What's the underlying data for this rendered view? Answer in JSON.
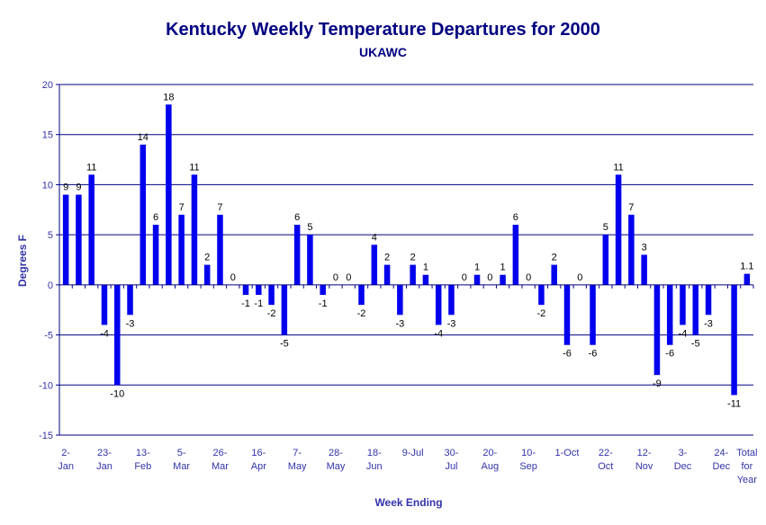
{
  "chart_data": {
    "type": "bar",
    "title": "Kentucky Weekly Temperature Departures for 2000",
    "subtitle": "UKAWC",
    "xlabel": "Week Ending",
    "ylabel": "Degrees F",
    "ylim": [
      -15,
      20
    ],
    "yticks": [
      20,
      15,
      10,
      5,
      0,
      -5,
      -10,
      -15
    ],
    "grid": true,
    "legend": "none",
    "bar_color": "#0000ee",
    "grid_color": "#000080",
    "values": [
      9,
      9,
      11,
      -4,
      -10,
      -3,
      14,
      6,
      18,
      7,
      11,
      2,
      7,
      0,
      -1,
      -1,
      -2,
      -5,
      6,
      5,
      -1,
      0,
      0,
      -2,
      4,
      2,
      -3,
      2,
      1,
      -4,
      -3,
      0,
      1,
      0,
      1,
      6,
      0,
      -2,
      2,
      -6,
      0,
      -6,
      5,
      11,
      7,
      3,
      -9,
      -6,
      -4,
      -5,
      -3,
      0,
      -11,
      1.1
    ],
    "data_labels": [
      "9",
      "9",
      "11",
      "-4",
      "-10",
      "-3",
      "14",
      "6",
      "18",
      "7",
      "11",
      "2",
      "7",
      "0",
      "-1",
      "-1",
      "-2",
      "-5",
      "6",
      "5",
      "-1",
      "0",
      "0",
      "-2",
      "4",
      "2",
      "-3",
      "2",
      "1",
      "-4",
      "-3",
      "0",
      "1",
      "0",
      "1",
      "6",
      "0",
      "-2",
      "2",
      "-6",
      "0",
      "-6",
      "5",
      "11",
      "7",
      "3",
      "-9",
      "-6",
      "-4",
      "-5",
      "-3",
      "",
      "-11",
      "1.1"
    ],
    "category_labels": [
      {
        "index": 0,
        "lines": [
          "2-",
          "Jan"
        ]
      },
      {
        "index": 3,
        "lines": [
          "23-",
          "Jan"
        ]
      },
      {
        "index": 6,
        "lines": [
          "13-",
          "Feb"
        ]
      },
      {
        "index": 9,
        "lines": [
          "5-",
          "Mar"
        ]
      },
      {
        "index": 12,
        "lines": [
          "26-",
          "Mar"
        ]
      },
      {
        "index": 15,
        "lines": [
          "16-",
          "Apr"
        ]
      },
      {
        "index": 18,
        "lines": [
          "7-",
          "May"
        ]
      },
      {
        "index": 21,
        "lines": [
          "28-",
          "May"
        ]
      },
      {
        "index": 24,
        "lines": [
          "18-",
          "Jun"
        ]
      },
      {
        "index": 27,
        "lines": [
          "9-Jul"
        ]
      },
      {
        "index": 30,
        "lines": [
          "30-",
          "Jul"
        ]
      },
      {
        "index": 33,
        "lines": [
          "20-",
          "Aug"
        ]
      },
      {
        "index": 36,
        "lines": [
          "10-",
          "Sep"
        ]
      },
      {
        "index": 39,
        "lines": [
          "1-Oct"
        ]
      },
      {
        "index": 42,
        "lines": [
          "22-",
          "Oct"
        ]
      },
      {
        "index": 45,
        "lines": [
          "12-",
          "Nov"
        ]
      },
      {
        "index": 48,
        "lines": [
          "3-",
          "Dec"
        ]
      },
      {
        "index": 51,
        "lines": [
          "24-",
          "Dec"
        ]
      },
      {
        "index": 53,
        "lines": [
          "Total",
          "for",
          "Year"
        ]
      }
    ]
  }
}
